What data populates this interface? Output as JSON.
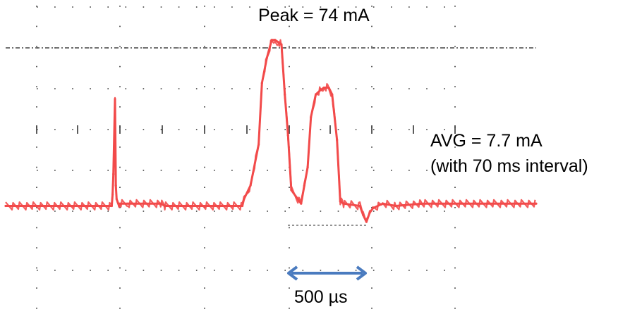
{
  "chart_data": {
    "type": "line",
    "title": "",
    "xlabel": "",
    "ylabel": "",
    "units": {
      "x": "µs",
      "y": "mA"
    },
    "xlim": [
      -1750,
      1500
    ],
    "ylim": [
      -10,
      90
    ],
    "grid": true,
    "series": [
      {
        "color": "#f24a4a",
        "x": [
          -1750,
          -1100,
          -1095,
          -1090,
          -1080,
          -1075,
          -1070,
          -1060,
          -1055,
          -1050,
          -1000,
          -800,
          -775,
          -770,
          -300,
          -290,
          -250,
          -200,
          -180,
          -150,
          -120,
          -100,
          -80,
          -60,
          -40,
          -20,
          0,
          60,
          80,
          100,
          120,
          150,
          180,
          200,
          230,
          250,
          280,
          300,
          320,
          420,
          440,
          460,
          480,
          500,
          560,
          640,
          800,
          1500
        ],
        "y": [
          1,
          1,
          6,
          15,
          48,
          10,
          4,
          2,
          1,
          2,
          2,
          2,
          1,
          1,
          1,
          4,
          10,
          28,
          55,
          66,
          74,
          74,
          73,
          72,
          50,
          32,
          8,
          2,
          10,
          18,
          40,
          50,
          52,
          53,
          53,
          50,
          30,
          3,
          2,
          1,
          -3,
          -6,
          -2,
          0,
          2,
          1,
          2,
          2
        ]
      }
    ]
  },
  "annotations": {
    "peak": "Peak = 74 mA",
    "avg_line1": "AVG = 7.7 mA",
    "avg_line2": "(with 70 ms interval)",
    "duration": "500 µs"
  },
  "colors": {
    "trace": "#f24a4a",
    "arrow": "#4a7bbf",
    "grid": "#333333"
  }
}
